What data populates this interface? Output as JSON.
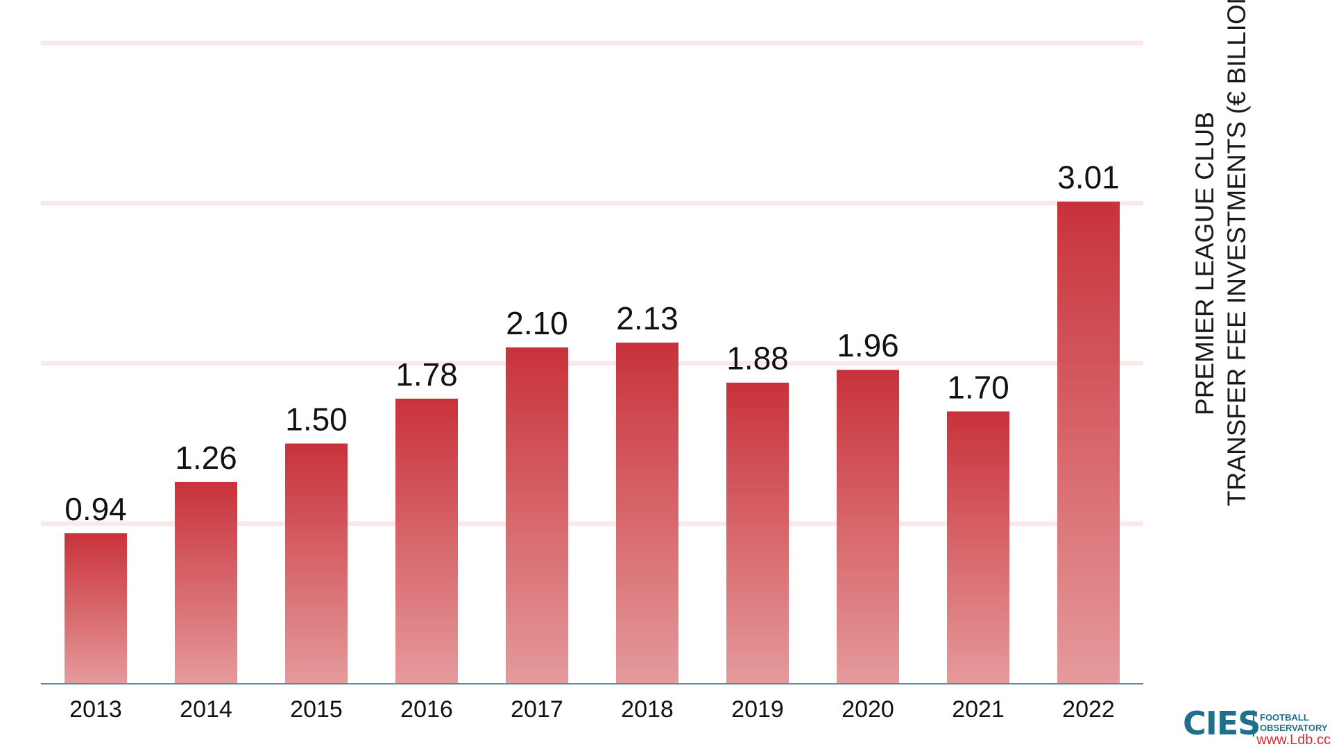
{
  "chart_data": {
    "type": "bar",
    "categories": [
      "2013",
      "2014",
      "2015",
      "2016",
      "2017",
      "2018",
      "2019",
      "2020",
      "2021",
      "2022"
    ],
    "values": [
      0.94,
      1.26,
      1.5,
      1.78,
      2.1,
      2.13,
      1.88,
      1.96,
      1.7,
      3.01
    ],
    "data_labels": [
      "0.94",
      "1.26",
      "1.50",
      "1.78",
      "2.10",
      "2.13",
      "1.88",
      "1.96",
      "1.70",
      "3.01"
    ],
    "title_lines": [
      "PREMIER LEAGUE CLUB",
      "TRANSFER FEE INVESTMENTS (€ BILLION)"
    ],
    "ylim": [
      0,
      4
    ],
    "gridlines": [
      1,
      2,
      3,
      4
    ],
    "grid": true,
    "legend": "none",
    "colors": {
      "bar_top": "#c8323a",
      "bar_bottom": "#e59a9c",
      "grid": "#fbe9ea",
      "axis": "#5b8ea6",
      "text": "#111111"
    }
  },
  "branding": {
    "logo_text": "CIES",
    "logo_sub_1": "FOOTBALL",
    "logo_sub_2": "OBSERVATORY",
    "watermark": "www.Ldb.cc"
  }
}
